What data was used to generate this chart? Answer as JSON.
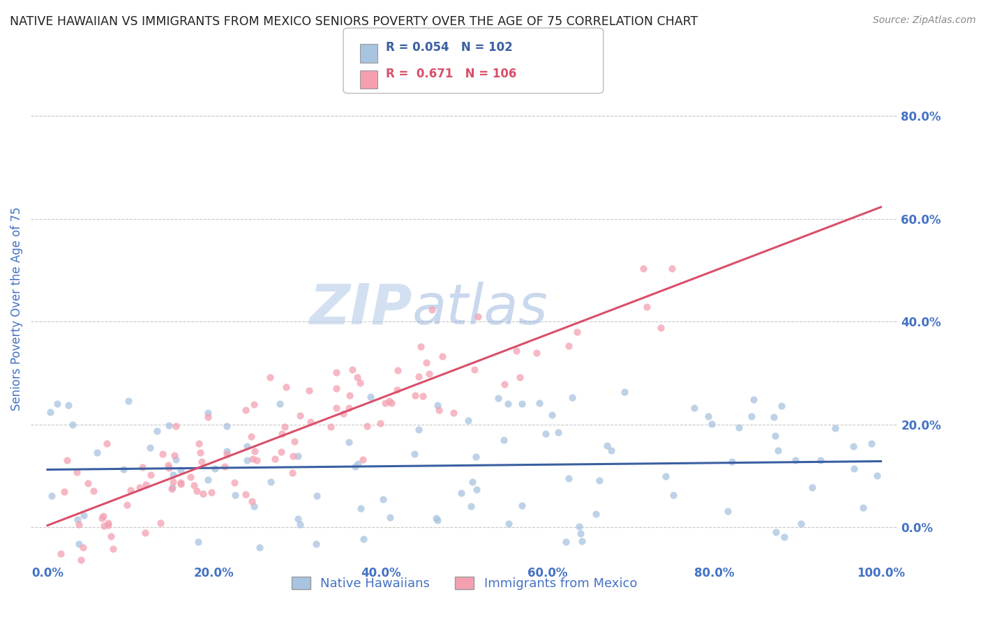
{
  "title": "NATIVE HAWAIIAN VS IMMIGRANTS FROM MEXICO SENIORS POVERTY OVER THE AGE OF 75 CORRELATION CHART",
  "source": "Source: ZipAtlas.com",
  "ylabel": "Seniors Poverty Over the Age of 75",
  "legend_label_1": "Native Hawaiians",
  "legend_label_2": "Immigrants from Mexico",
  "r1": 0.054,
  "n1": 102,
  "r2": 0.671,
  "n2": 106,
  "color1": "#a8c4e0",
  "color2": "#f4a0b0",
  "line_color1": "#3a5fa0",
  "line_color2": "#d94f6a",
  "watermark_zip": "ZIP",
  "watermark_atlas": "atlas",
  "title_color": "#222222",
  "axis_label_color": "#4472c4",
  "tick_color": "#4472c4",
  "background_color": "#ffffff",
  "grid_color": "#c8c8c8",
  "xlim": [
    -0.02,
    1.02
  ],
  "ylim": [
    -0.07,
    0.92
  ],
  "xticks": [
    0.0,
    0.2,
    0.4,
    0.6,
    0.8,
    1.0
  ],
  "yticks": [
    0.0,
    0.2,
    0.4,
    0.6,
    0.8
  ],
  "xtick_labels": [
    "0.0%",
    "20.0%",
    "40.0%",
    "60.0%",
    "80.0%",
    "100.0%"
  ],
  "ytick_labels": [
    "0.0%",
    "20.0%",
    "40.0%",
    "60.0%",
    "80.0%"
  ]
}
